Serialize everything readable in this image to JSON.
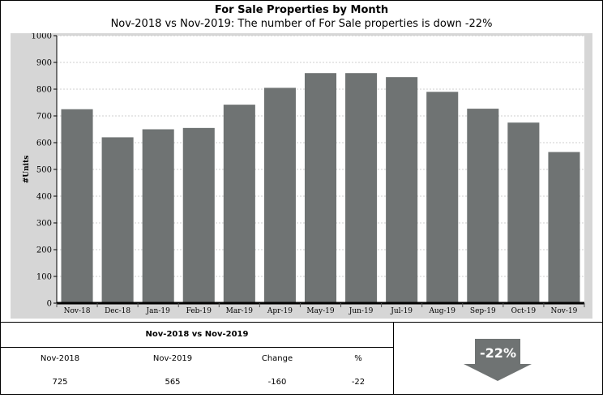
{
  "header": {
    "title": "For Sale Properties by Month",
    "subtitle": "Nov-2018 vs Nov-2019: The number of For Sale properties is down -22%"
  },
  "chart_data": {
    "type": "bar",
    "title": "For Sale Properties by Month",
    "subtitle": "Nov-2018 vs Nov-2019: The number of For Sale properties is down -22%",
    "xlabel": "",
    "ylabel": "#Units",
    "ylim": [
      0,
      1000
    ],
    "yticks": [
      0,
      100,
      200,
      300,
      400,
      500,
      600,
      700,
      800,
      900,
      1000
    ],
    "categories": [
      "Nov-18",
      "Dec-18",
      "Jan-19",
      "Feb-19",
      "Mar-19",
      "Apr-19",
      "May-19",
      "Jun-19",
      "Jul-19",
      "Aug-19",
      "Sep-19",
      "Oct-19",
      "Nov-19"
    ],
    "values": [
      725,
      620,
      650,
      655,
      742,
      805,
      860,
      860,
      845,
      790,
      727,
      675,
      565
    ],
    "grid": true,
    "bar_color": "#6f7373",
    "background_color": "#d6d6d6"
  },
  "summary": {
    "title": "Nov-2018 vs Nov-2019",
    "headers": [
      "Nov-2018",
      "Nov-2019",
      "Change",
      "%"
    ],
    "values": [
      "725",
      "565",
      "-160",
      "-22"
    ],
    "badge": "-22%",
    "badge_color": "#6f7373"
  }
}
